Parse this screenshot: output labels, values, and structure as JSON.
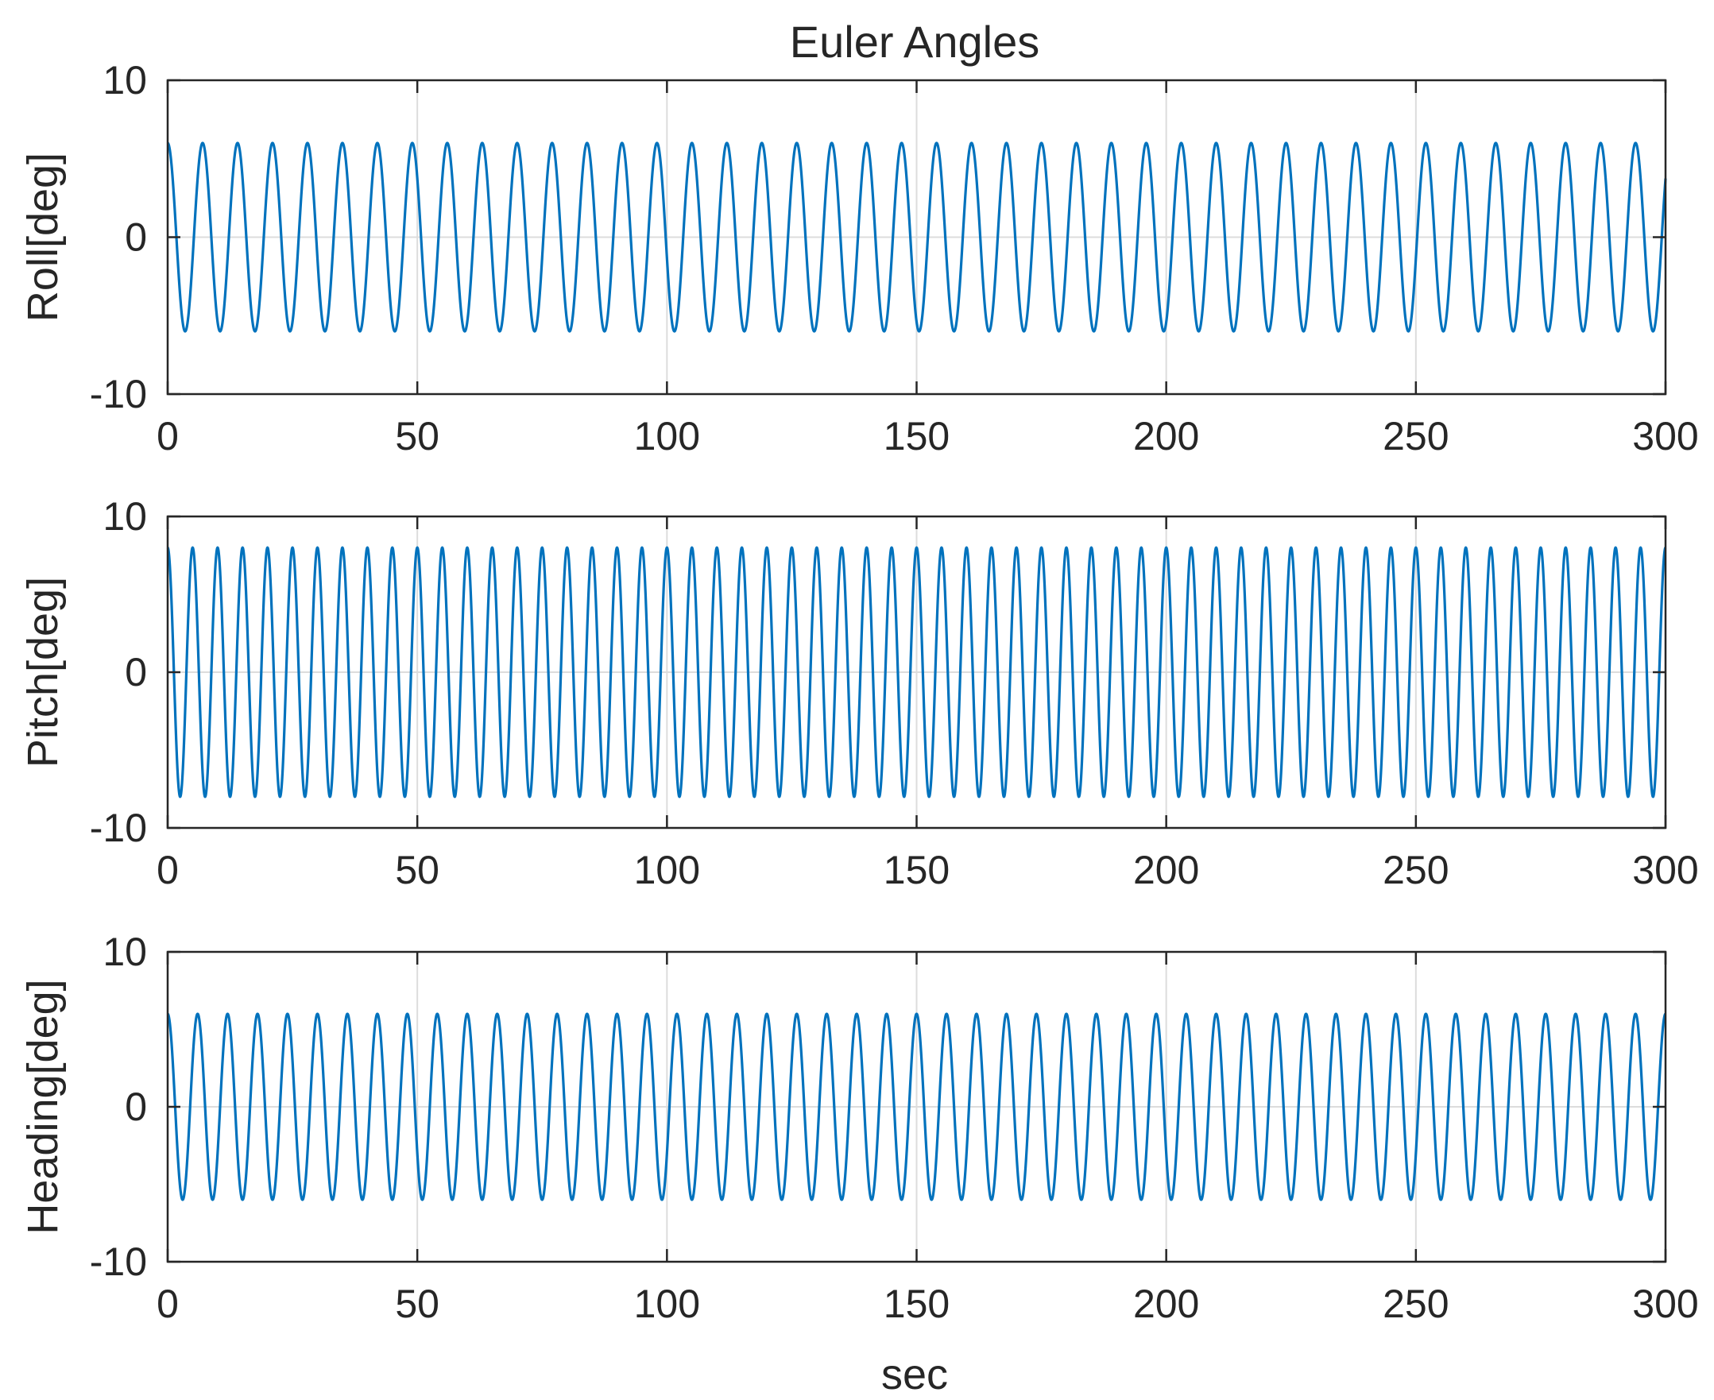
{
  "figure": {
    "title": "Euler Angles",
    "xlabel": "sec"
  },
  "colors": {
    "line": "#0072bd",
    "grid": "#dcdcdc",
    "axes": "#262626",
    "background": "#ffffff"
  },
  "chart_data": [
    {
      "type": "line",
      "title": "Euler Angles",
      "xlabel": "",
      "ylabel": "Roll[deg]",
      "xlim": [
        0,
        300
      ],
      "ylim": [
        -10,
        10
      ],
      "xticks": [
        0,
        50,
        100,
        150,
        200,
        250,
        300
      ],
      "yticks": [
        -10,
        0,
        10
      ],
      "grid": true,
      "series": [
        {
          "function": "A*cos(2*pi*t/T)",
          "amplitude": 6,
          "period": 7.0,
          "x_start": 0,
          "x_end": 300
        }
      ]
    },
    {
      "type": "line",
      "xlabel": "",
      "ylabel": "Pitch[deg]",
      "xlim": [
        0,
        300
      ],
      "ylim": [
        -10,
        10
      ],
      "xticks": [
        0,
        50,
        100,
        150,
        200,
        250,
        300
      ],
      "yticks": [
        -10,
        0,
        10
      ],
      "grid": true,
      "series": [
        {
          "function": "A*cos(2*pi*t/T)",
          "amplitude": 8,
          "period": 5.0,
          "x_start": 0,
          "x_end": 300
        }
      ]
    },
    {
      "type": "line",
      "xlabel": "sec",
      "ylabel": "Heading[deg]",
      "xlim": [
        0,
        300
      ],
      "ylim": [
        -10,
        10
      ],
      "xticks": [
        0,
        50,
        100,
        150,
        200,
        250,
        300
      ],
      "yticks": [
        -10,
        0,
        10
      ],
      "grid": true,
      "series": [
        {
          "function": "A*cos(2*pi*t/T)",
          "amplitude": 6,
          "period": 6.0,
          "x_start": 0,
          "x_end": 300
        }
      ]
    }
  ]
}
